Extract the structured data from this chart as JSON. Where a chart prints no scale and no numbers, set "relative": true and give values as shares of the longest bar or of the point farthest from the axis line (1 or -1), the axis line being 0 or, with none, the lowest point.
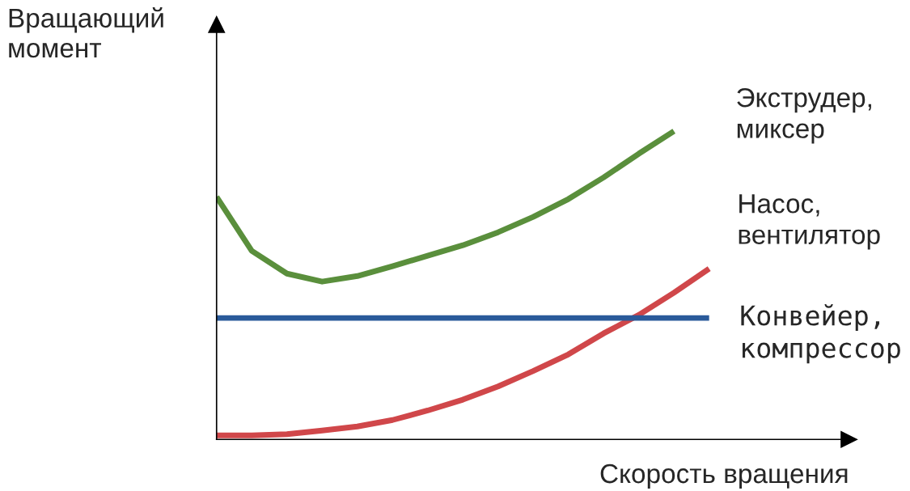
{
  "chart_data": {
    "type": "line",
    "relative": true,
    "xlabel": "Скорость вращения",
    "ylabel": "Вращающий\nмомент",
    "legend": false,
    "marker": "none",
    "line_style": "solid",
    "categories": [
      null,
      null,
      null,
      null,
      null,
      null,
      null,
      null,
      null,
      null,
      null,
      null,
      null,
      null,
      null
    ],
    "series": [
      {
        "name": "Экструдер,\nмиксер",
        "color": "#5a8f3c",
        "values": [
          0.787,
          0.612,
          0.538,
          0.512,
          0.53,
          0.562,
          0.596,
          0.63,
          0.672,
          0.722,
          0.78,
          0.85,
          0.927,
          1,
          null
        ]
      },
      {
        "name": "Насос,\nвентилятор",
        "color": "#d0474a",
        "values": [
          0.013,
          0.013,
          0.017,
          0.029,
          0.042,
          0.063,
          0.094,
          0.129,
          0.172,
          0.222,
          0.276,
          0.344,
          0.404,
          0.476,
          0.554
        ]
      },
      {
        "name": "Конвейер,\nкомпрессор",
        "color": "#2a5a9a",
        "values": [
          0.394,
          0.394,
          0.394,
          0.394,
          0.394,
          0.394,
          0.394,
          0.394,
          0.394,
          0.394,
          0.394,
          0.394,
          0.394,
          0.394,
          0.394
        ]
      }
    ]
  }
}
